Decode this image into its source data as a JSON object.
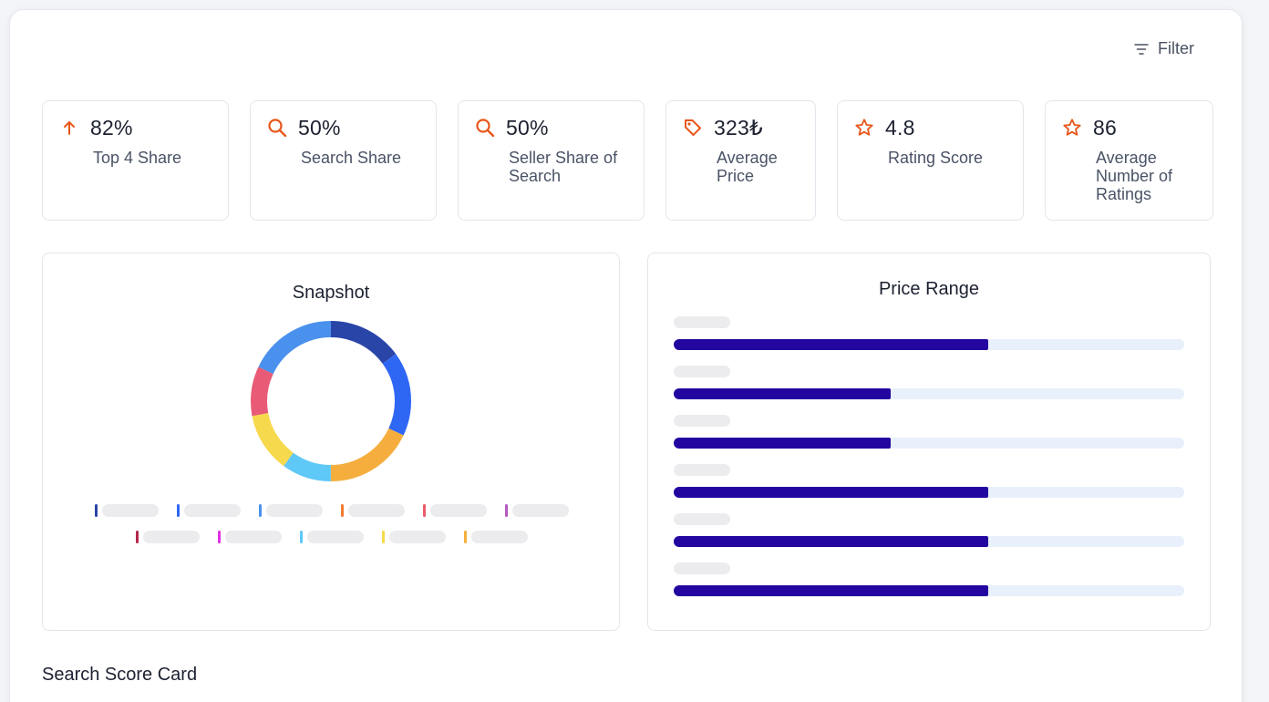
{
  "toolbar": {
    "filter_label": "Filter",
    "filter_icon": "filter-icon"
  },
  "stats": [
    {
      "icon": "arrow-up-icon",
      "value": "82%",
      "label": "Top 4 Share"
    },
    {
      "icon": "search-icon",
      "value": "50%",
      "label": "Search Share"
    },
    {
      "icon": "search-icon",
      "value": "50%",
      "label": "Seller Share of Search"
    },
    {
      "icon": "tag-icon",
      "value": "323₺",
      "label": "Average Price"
    },
    {
      "icon": "star-icon",
      "value": "4.8",
      "label": "Rating Score"
    },
    {
      "icon": "star-icon",
      "value": "86",
      "label": "Average Number of Ratings"
    }
  ],
  "snapshot": {
    "title": "Snapshot",
    "segments": [
      {
        "color": "#2a45a8",
        "fraction": 0.15
      },
      {
        "color": "#2f67f5",
        "fraction": 0.17
      },
      {
        "color": "#f5ae3e",
        "fraction": 0.18
      },
      {
        "color": "#5ec8f7",
        "fraction": 0.1
      },
      {
        "color": "#f6d94c",
        "fraction": 0.12
      },
      {
        "color": "#e95a77",
        "fraction": 0.1
      },
      {
        "color": "#4a90ed",
        "fraction": 0.18
      }
    ],
    "legend_colors_row1": [
      "#2a45a8",
      "#2f67f5",
      "#4a90ed",
      "#f27a30",
      "#e95a68",
      "#b65ac2"
    ],
    "legend_colors_row2": [
      "#b1284b",
      "#e32ee6",
      "#5ec8f7",
      "#f6d94c",
      "#f5ae3e"
    ]
  },
  "price_range": {
    "title": "Price Range",
    "bars": [
      0.616,
      0.425,
      0.425,
      0.616,
      0.616,
      0.616
    ]
  },
  "section": {
    "title": "Search Score Card"
  },
  "colors": {
    "accent": "#e8561a",
    "bar_fill": "#23059f",
    "bar_track": "#e8f0fb"
  }
}
